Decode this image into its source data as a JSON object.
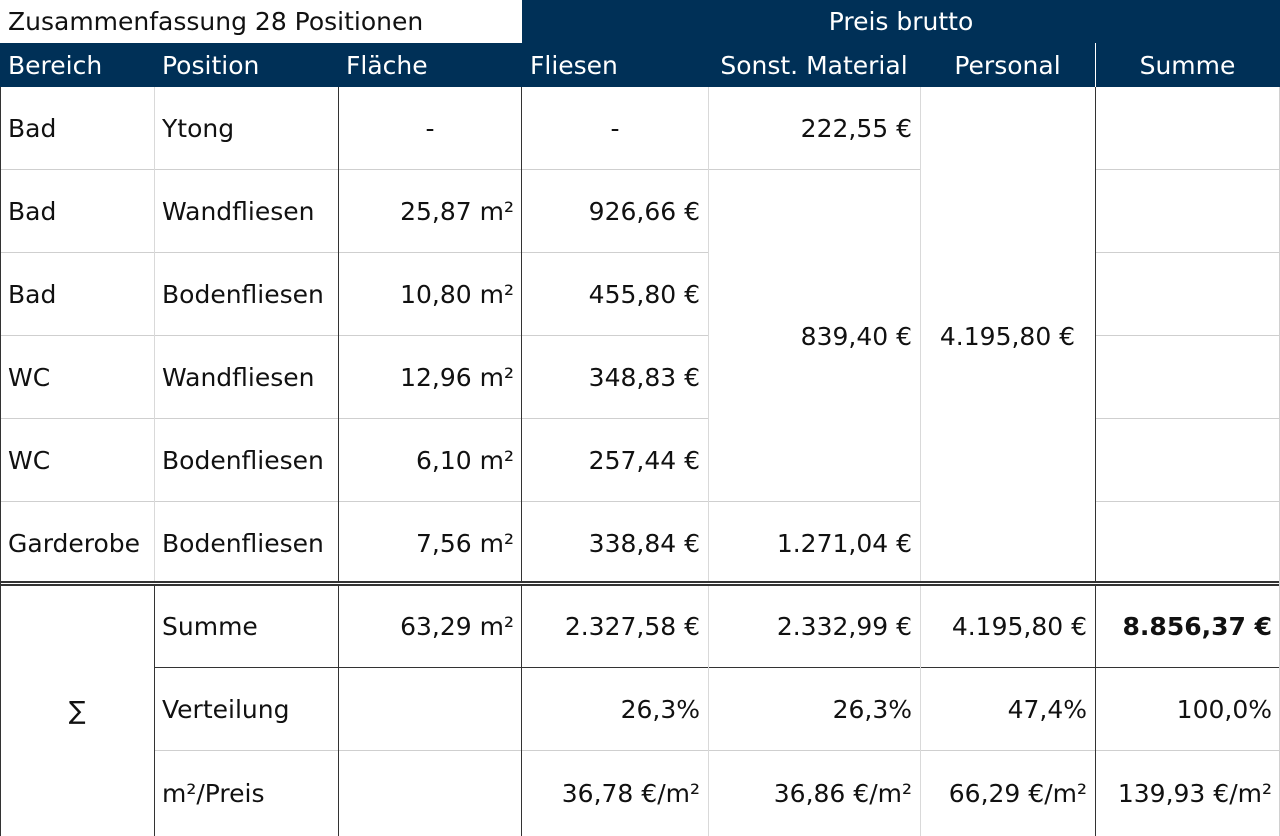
{
  "title": "Zusammenfassung 28 Positionen",
  "group_header": "Preis brutto",
  "headers": [
    "Bereich",
    "Position",
    "Fläche",
    "Fliesen",
    "Sonst. Material",
    "Personal",
    "Summe"
  ],
  "rows": [
    {
      "bereich": "Bad",
      "position": "Ytong",
      "flaeche": "-",
      "fliesen": "-"
    },
    {
      "bereich": "Bad",
      "position": "Wandfliesen",
      "flaeche": "25,87 m²",
      "fliesen": "926,66 €"
    },
    {
      "bereich": "Bad",
      "position": "Bodenfliesen",
      "flaeche": "10,80 m²",
      "fliesen": "455,80 €"
    },
    {
      "bereich": "WC",
      "position": "Wandfliesen",
      "flaeche": "12,96 m²",
      "fliesen": "348,83 €"
    },
    {
      "bereich": "WC",
      "position": "Bodenfliesen",
      "flaeche": "6,10 m²",
      "fliesen": "257,44 €"
    },
    {
      "bereich": "Garderobe",
      "position": "Bodenfliesen",
      "flaeche": "7,56 m²",
      "fliesen": "338,84 €"
    }
  ],
  "merged": {
    "material_ytong": "222,55 €",
    "material_fliesen": "839,40 €",
    "material_garderobe": "1.271,04 €",
    "personal": "4.195,80 €"
  },
  "summary": {
    "sigma": "∑",
    "summe": {
      "label": "Summe",
      "flaeche": "63,29 m²",
      "fliesen": "2.327,58 €",
      "material": "2.332,99 €",
      "personal": "4.195,80 €",
      "total": "8.856,37 €"
    },
    "verteilung": {
      "label": "Verteilung",
      "fliesen": "26,3%",
      "material": "26,3%",
      "personal": "47,4%",
      "total": "100,0%"
    },
    "preis": {
      "label": "m²/Preis",
      "fliesen": "36,78 €/m²",
      "material": "36,86 €/m²",
      "personal": "66,29 €/m²",
      "total": "139,93 €/m²"
    }
  }
}
